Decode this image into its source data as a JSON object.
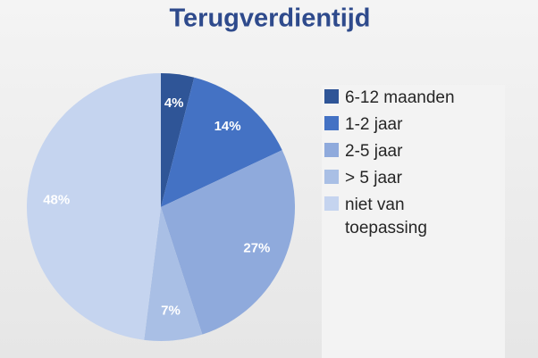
{
  "chart_data": {
    "type": "pie",
    "title": "Terugverdientijd",
    "categories": [
      "6-12 maanden",
      "1-2 jaar",
      "2-5 jaar",
      "> 5 jaar",
      "niet van toepassing"
    ],
    "values": [
      4,
      14,
      27,
      7,
      48
    ],
    "value_labels": [
      "4%",
      "14%",
      "27%",
      "7%",
      "48%"
    ],
    "colors": [
      "#2f5597",
      "#4472c4",
      "#8faadc",
      "#a9bfe5",
      "#c5d4ef"
    ],
    "legend": "right"
  }
}
